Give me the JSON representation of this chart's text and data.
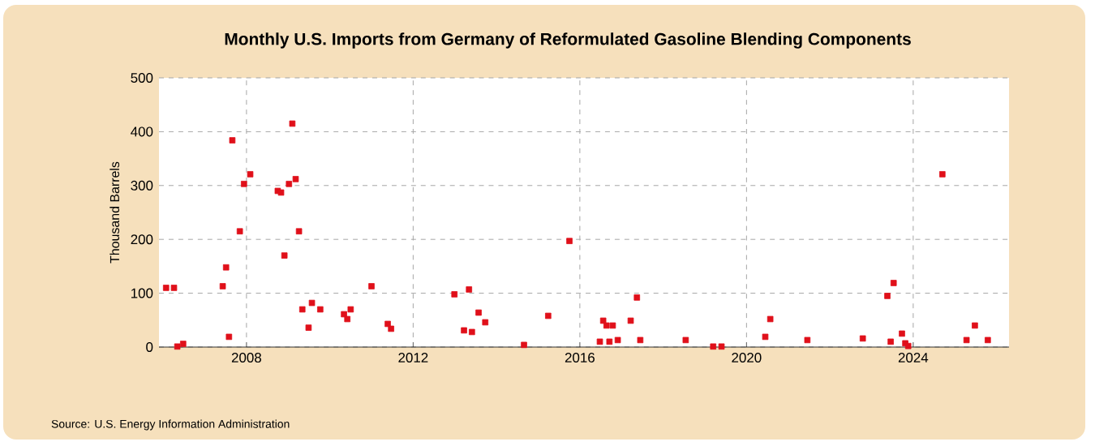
{
  "chart_data": {
    "type": "scatter",
    "title": "Monthly U.S. Imports from Germany of Reformulated Gasoline Blending Components",
    "ylabel": "Thousand Barrels",
    "annotations": [
      "Source: U.S. Energy Information Administration"
    ],
    "x": [
      2006.07,
      2006.26,
      2006.34,
      2006.48,
      2007.43,
      2007.51,
      2007.58,
      2007.66,
      2007.84,
      2007.94,
      2008.09,
      2008.75,
      2008.83,
      2008.91,
      2009.02,
      2009.1,
      2009.18,
      2009.26,
      2009.34,
      2009.49,
      2009.57,
      2009.77,
      2010.34,
      2010.42,
      2010.5,
      2011.0,
      2011.39,
      2011.47,
      2012.99,
      2013.22,
      2013.34,
      2013.41,
      2013.57,
      2013.73,
      2014.66,
      2015.24,
      2015.75,
      2016.48,
      2016.56,
      2016.64,
      2016.71,
      2016.79,
      2016.91,
      2017.22,
      2017.37,
      2017.45,
      2018.54,
      2019.2,
      2019.4,
      2020.45,
      2020.57,
      2021.46,
      2022.79,
      2023.38,
      2023.46,
      2023.53,
      2023.73,
      2023.81,
      2023.88,
      2024.7,
      2025.28,
      2025.48,
      2025.79
    ],
    "values": [
      110,
      110,
      1,
      6,
      113,
      148,
      19,
      384,
      215,
      303,
      321,
      290,
      287,
      170,
      303,
      415,
      312,
      215,
      70,
      36,
      82,
      70,
      61,
      52,
      70,
      113,
      43,
      34,
      98,
      31,
      107,
      28,
      64,
      46,
      4,
      58,
      197,
      10,
      49,
      40,
      10,
      40,
      13,
      49,
      92,
      13,
      13,
      1,
      1,
      19,
      52,
      13,
      16,
      95,
      10,
      119,
      25,
      7,
      2,
      321,
      13,
      40,
      13
    ],
    "color": "#e0101a",
    "marker": "square",
    "grid": true,
    "xlim": [
      2005.9,
      2026.3
    ],
    "xticks": [
      2008,
      2012,
      2016,
      2020,
      2024
    ],
    "ylim": [
      0,
      500
    ],
    "yticks": [
      0,
      100,
      200,
      300,
      400,
      500
    ]
  }
}
